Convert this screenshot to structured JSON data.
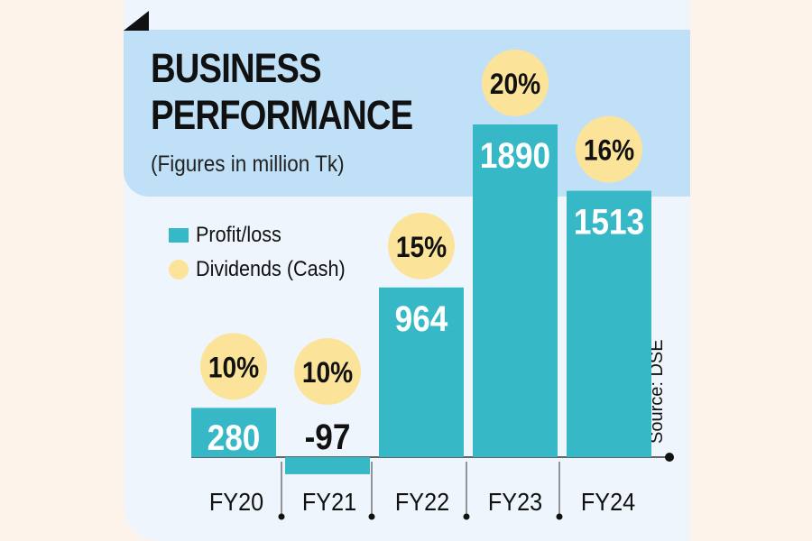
{
  "header": {
    "title_line1": "BUSINESS",
    "title_line2": "PERFORMANCE",
    "subtitle": "(Figures in million Tk)"
  },
  "legend": {
    "profit_label": "Profit/loss",
    "dividend_label": "Dividends (Cash)"
  },
  "source": "Source: DSE",
  "colors": {
    "bar": "#37b8c6",
    "dividend": "#fbe49a",
    "header_band": "#bfe0f7",
    "panel": "#eef5fc"
  },
  "chart_data": {
    "type": "bar",
    "title": "BUSINESS PERFORMANCE",
    "subtitle": "(Figures in million Tk)",
    "categories": [
      "FY20",
      "FY21",
      "FY22",
      "FY23",
      "FY24"
    ],
    "series": [
      {
        "name": "Profit/loss",
        "values": [
          280,
          -97,
          964,
          1890,
          1513
        ]
      },
      {
        "name": "Dividends (Cash)",
        "values": [
          10,
          10,
          15,
          20,
          16
        ],
        "unit": "%"
      }
    ],
    "bar_labels": [
      "280",
      "-97",
      "964",
      "1890",
      "1513"
    ],
    "dividend_labels": [
      "10%",
      "10%",
      "15%",
      "20%",
      "16%"
    ],
    "xlabel": "",
    "ylabel": "",
    "ylim": [
      -97,
      1890
    ]
  }
}
